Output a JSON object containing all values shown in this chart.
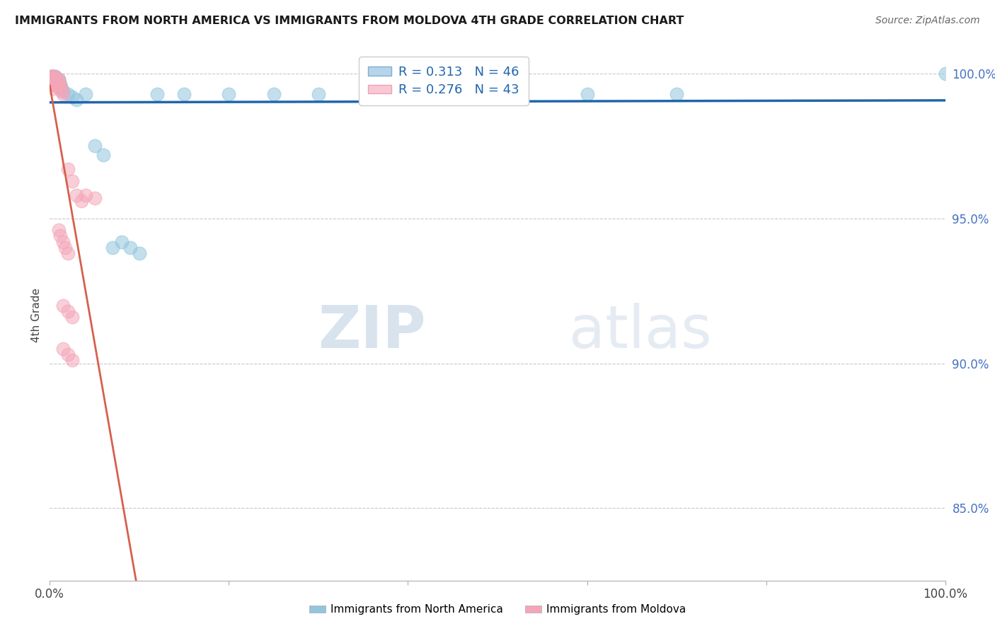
{
  "title": "IMMIGRANTS FROM NORTH AMERICA VS IMMIGRANTS FROM MOLDOVA 4TH GRADE CORRELATION CHART",
  "source": "Source: ZipAtlas.com",
  "ylabel": "4th Grade",
  "legend_label1": "Immigrants from North America",
  "legend_label2": "Immigrants from Moldova",
  "R1": 0.313,
  "N1": 46,
  "R2": 0.276,
  "N2": 43,
  "color_blue": "#92c5de",
  "color_pink": "#f4a6b8",
  "color_line_blue": "#2166ac",
  "color_line_pink": "#d6604d",
  "watermark_zip": "ZIP",
  "watermark_atlas": "atlas",
  "xlim": [
    0,
    1.0
  ],
  "ylim": [
    0.825,
    1.008
  ],
  "yticks": [
    0.85,
    0.9,
    0.95,
    1.0
  ],
  "ytick_labels": [
    "85.0%",
    "90.0%",
    "95.0%",
    "100.0%"
  ],
  "blue_x": [
    0.001,
    0.001,
    0.002,
    0.002,
    0.002,
    0.003,
    0.003,
    0.003,
    0.004,
    0.004,
    0.004,
    0.005,
    0.005,
    0.006,
    0.006,
    0.007,
    0.007,
    0.008,
    0.008,
    0.009,
    0.01,
    0.01,
    0.011,
    0.012,
    0.013,
    0.015,
    0.02,
    0.025,
    0.03,
    0.04,
    0.05,
    0.06,
    0.07,
    0.08,
    0.09,
    0.1,
    0.12,
    0.15,
    0.2,
    0.25,
    0.3,
    0.4,
    0.5,
    0.6,
    0.7,
    1.0
  ],
  "blue_y": [
    0.999,
    0.998,
    0.999,
    0.998,
    0.997,
    0.999,
    0.998,
    0.997,
    0.999,
    0.998,
    0.997,
    0.999,
    0.998,
    0.999,
    0.997,
    0.998,
    0.997,
    0.998,
    0.996,
    0.997,
    0.998,
    0.996,
    0.997,
    0.996,
    0.995,
    0.994,
    0.993,
    0.992,
    0.991,
    0.993,
    0.975,
    0.972,
    0.94,
    0.942,
    0.94,
    0.938,
    0.993,
    0.993,
    0.993,
    0.993,
    0.993,
    0.993,
    0.993,
    0.993,
    0.993,
    1.0
  ],
  "pink_x": [
    0.001,
    0.001,
    0.001,
    0.002,
    0.002,
    0.002,
    0.003,
    0.003,
    0.003,
    0.004,
    0.004,
    0.004,
    0.005,
    0.005,
    0.006,
    0.006,
    0.007,
    0.007,
    0.008,
    0.009,
    0.01,
    0.01,
    0.011,
    0.012,
    0.013,
    0.015,
    0.02,
    0.025,
    0.03,
    0.035,
    0.04,
    0.05,
    0.01,
    0.012,
    0.015,
    0.017,
    0.02,
    0.015,
    0.02,
    0.025,
    0.015,
    0.02,
    0.025
  ],
  "pink_y": [
    0.999,
    0.998,
    0.997,
    0.999,
    0.998,
    0.997,
    0.999,
    0.998,
    0.996,
    0.998,
    0.997,
    0.995,
    0.999,
    0.997,
    0.998,
    0.996,
    0.998,
    0.996,
    0.997,
    0.997,
    0.998,
    0.996,
    0.995,
    0.996,
    0.994,
    0.993,
    0.967,
    0.963,
    0.958,
    0.956,
    0.958,
    0.957,
    0.946,
    0.944,
    0.942,
    0.94,
    0.938,
    0.92,
    0.918,
    0.916,
    0.905,
    0.903,
    0.901
  ]
}
